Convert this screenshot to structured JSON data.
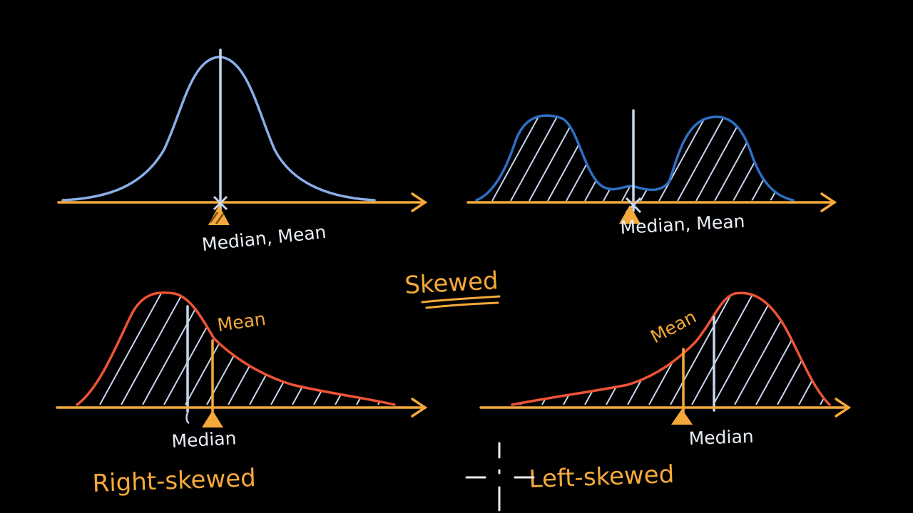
{
  "colors": {
    "background": "#000000",
    "axis": "#f5a93b",
    "normal_curve": "#8aaee8",
    "bimodal_curve": "#2f6fc4",
    "skew_curve": "#ef5336",
    "median_line": "#c8d6ec",
    "mean_line": "#f5a93b",
    "hatch": "#c8d6ec"
  },
  "panels": {
    "normal": {
      "label": "Median, Mean"
    },
    "bimodal": {
      "label": "Median, Mean"
    },
    "right_skewed": {
      "mean_label": "Mean",
      "median_label": "Median",
      "title": "Right-skewed"
    },
    "left_skewed": {
      "mean_label": "Mean",
      "median_label": "Median",
      "title": "Left-skewed"
    }
  },
  "center_heading": "Skewed"
}
